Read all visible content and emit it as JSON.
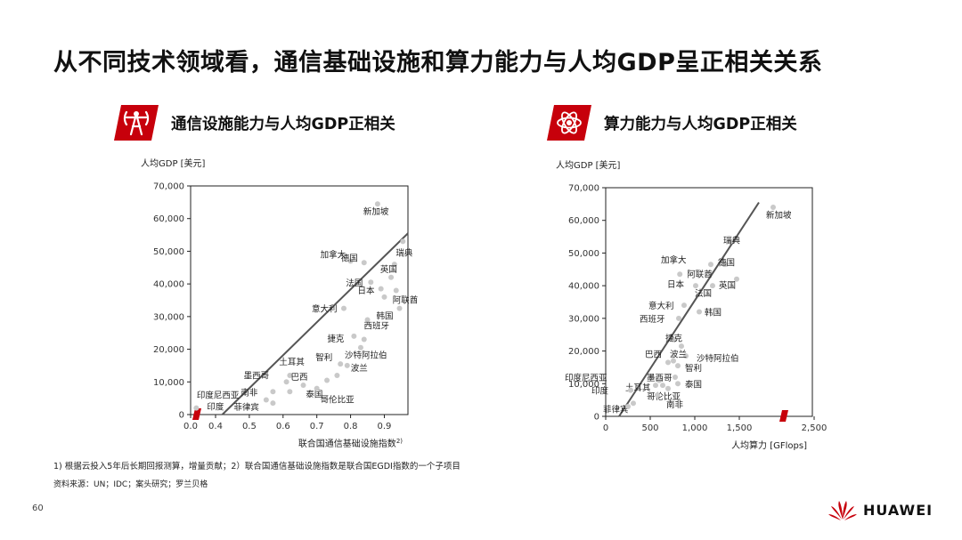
{
  "title": "从不同技术领域看，通信基础设施和算力能力与人均GDP呈正相关关系",
  "colors": {
    "accent": "#c7000b",
    "point": "#c9c9c9",
    "line": "#555555"
  },
  "panels": {
    "left": {
      "icon": "telecom-tower-icon",
      "title": "通信设施能力与人均GDP正相关"
    },
    "right": {
      "icon": "compute-atom-icon",
      "title": "算力能力与人均GDP正相关"
    }
  },
  "footnote": "1) 根据云投入5年后长期回报测算，增量贡献；2）联合国通信基础设施指数是联合国EGDI指数的一个子项目",
  "source": "资料来源：UN；IDC；案头研究；罗兰贝格",
  "page_number": "60",
  "brand": {
    "name": "HUAWEI",
    "logo": "huawei-flower-logo"
  },
  "chart_data": [
    {
      "type": "scatter",
      "title": "通信设施能力与人均GDP正相关",
      "ylabel": "人均GDP [美元]",
      "xlabel": "联合国通信基础设施指数",
      "xlabel_sup": "2)",
      "xlim": [
        0.0,
        1.0
      ],
      "ylim": [
        0,
        70000
      ],
      "axis_break": "x",
      "xticks": [
        {
          "v": 0.0,
          "label": "0.0"
        },
        {
          "v": 0.4,
          "label": "0.4"
        },
        {
          "v": 0.5,
          "label": "0.5"
        },
        {
          "v": 0.6,
          "label": "0.6"
        },
        {
          "v": 0.7,
          "label": "0.7"
        },
        {
          "v": 0.8,
          "label": "0.8"
        },
        {
          "v": 0.9,
          "label": "0.9"
        }
      ],
      "yticks": [
        {
          "v": 0,
          "label": "0"
        },
        {
          "v": 10000,
          "label": "10,000"
        },
        {
          "v": 20000,
          "label": "20,000"
        },
        {
          "v": 30000,
          "label": "30,000"
        },
        {
          "v": 40000,
          "label": "40,000"
        },
        {
          "v": 50000,
          "label": "50,000"
        },
        {
          "v": 60000,
          "label": "60,000"
        },
        {
          "v": 70000,
          "label": "70,000"
        }
      ],
      "trendline": [
        [
          0.42,
          0
        ],
        [
          0.97,
          55500
        ]
      ],
      "points": [
        {
          "label": "新加坡",
          "x": 0.88,
          "y": 64500
        },
        {
          "label": "瑞典",
          "x": 0.955,
          "y": 53000
        },
        {
          "label": "加拿大",
          "x": 0.8,
          "y": 47000
        },
        {
          "label": "德国",
          "x": 0.84,
          "y": 46500
        },
        {
          "label": "英国",
          "x": 0.93,
          "y": 46000
        },
        {
          "label": "法国",
          "x": 0.86,
          "y": 40500
        },
        {
          "label": "",
          "x": 0.92,
          "y": 42000
        },
        {
          "label": "",
          "x": 0.89,
          "y": 38500
        },
        {
          "label": "日本",
          "x": 0.9,
          "y": 36000
        },
        {
          "label": "阿联酋",
          "x": 0.935,
          "y": 38000
        },
        {
          "label": "韩国",
          "x": 0.945,
          "y": 32500
        },
        {
          "label": "意大利",
          "x": 0.78,
          "y": 32500
        },
        {
          "label": "西班牙",
          "x": 0.85,
          "y": 29000
        },
        {
          "label": "捷克",
          "x": 0.81,
          "y": 24000
        },
        {
          "label": "",
          "x": 0.84,
          "y": 23000
        },
        {
          "label": "沙特阿拉伯",
          "x": 0.83,
          "y": 20500
        },
        {
          "label": "智利",
          "x": 0.77,
          "y": 15500
        },
        {
          "label": "波兰",
          "x": 0.79,
          "y": 15000
        },
        {
          "label": "",
          "x": 0.76,
          "y": 12000
        },
        {
          "label": "",
          "x": 0.73,
          "y": 10500
        },
        {
          "label": "土耳其",
          "x": 0.62,
          "y": 12000
        },
        {
          "label": "墨西哥",
          "x": 0.61,
          "y": 10000
        },
        {
          "label": "巴西",
          "x": 0.66,
          "y": 9000
        },
        {
          "label": "南非",
          "x": 0.57,
          "y": 7000
        },
        {
          "label": "泰国",
          "x": 0.62,
          "y": 7000
        },
        {
          "label": "哥伦比亚",
          "x": 0.7,
          "y": 8000
        },
        {
          "label": "印度尼西亚",
          "x": 0.55,
          "y": 4500
        },
        {
          "label": "菲律宾",
          "x": 0.57,
          "y": 3500
        },
        {
          "label": "印度",
          "x": 0.04,
          "y": 2000
        }
      ]
    },
    {
      "type": "scatter",
      "title": "算力能力与人均GDP正相关",
      "ylabel": "人均GDP [美元]",
      "xlabel": "人均算力 [GFlops]",
      "xlim": [
        0,
        2500
      ],
      "ylim": [
        0,
        70000
      ],
      "axis_break": "x",
      "xticks": [
        {
          "v": 0,
          "label": "0"
        },
        {
          "v": 500,
          "label": "500"
        },
        {
          "v": 1000,
          "label": "1,000"
        },
        {
          "v": 1500,
          "label": "1,500"
        },
        {
          "v": 2500,
          "label": "2,500"
        }
      ],
      "yticks": [
        {
          "v": 0,
          "label": "0"
        },
        {
          "v": 10000,
          "label": "10,000"
        },
        {
          "v": 20000,
          "label": "20,000"
        },
        {
          "v": 30000,
          "label": "30,000"
        },
        {
          "v": 40000,
          "label": "40,000"
        },
        {
          "v": 50000,
          "label": "50,000"
        },
        {
          "v": 60000,
          "label": "60,000"
        },
        {
          "v": 70000,
          "label": "70,000"
        }
      ],
      "trendline": [
        [
          150,
          0
        ],
        [
          1720,
          65500
        ]
      ],
      "points": [
        {
          "label": "新加坡",
          "x": 1880,
          "y": 64000
        },
        {
          "label": "瑞典",
          "x": 1400,
          "y": 53500
        },
        {
          "label": "德国",
          "x": 1340,
          "y": 46500
        },
        {
          "label": "加拿大",
          "x": 1180,
          "y": 46500
        },
        {
          "label": "阿联酋",
          "x": 1980,
          "y": 43500
        },
        {
          "label": "英国",
          "x": 1470,
          "y": 42000
        },
        {
          "label": "日本",
          "x": 1010,
          "y": 40000
        },
        {
          "label": "法国",
          "x": 1200,
          "y": 40000
        },
        {
          "label": "意大利",
          "x": 880,
          "y": 34000
        },
        {
          "label": "韩国",
          "x": 1050,
          "y": 32000
        },
        {
          "label": "西班牙",
          "x": 820,
          "y": 30000
        },
        {
          "label": "捷克",
          "x": 770,
          "y": 23500
        },
        {
          "label": "",
          "x": 850,
          "y": 21500
        },
        {
          "label": "沙特阿拉伯",
          "x": 900,
          "y": 18500
        },
        {
          "label": "巴西",
          "x": 700,
          "y": 16500
        },
        {
          "label": "波兰",
          "x": 760,
          "y": 17000
        },
        {
          "label": "智利",
          "x": 810,
          "y": 15500
        },
        {
          "label": "印度尼西亚",
          "x": 520,
          "y": 12000
        },
        {
          "label": "",
          "x": 600,
          "y": 11000
        },
        {
          "label": "墨西哥",
          "x": 780,
          "y": 12000
        },
        {
          "label": "土耳其",
          "x": 640,
          "y": 9500
        },
        {
          "label": "泰国",
          "x": 810,
          "y": 10000
        },
        {
          "label": "",
          "x": 560,
          "y": 9500
        },
        {
          "label": "哥伦比亚",
          "x": 700,
          "y": 8500
        },
        {
          "label": "印度",
          "x": 280,
          "y": 8000
        },
        {
          "label": "南非",
          "x": 580,
          "y": 6500
        },
        {
          "label": "菲律宾",
          "x": 310,
          "y": 4000
        },
        {
          "label": "",
          "x": 250,
          "y": 3000
        }
      ]
    }
  ]
}
